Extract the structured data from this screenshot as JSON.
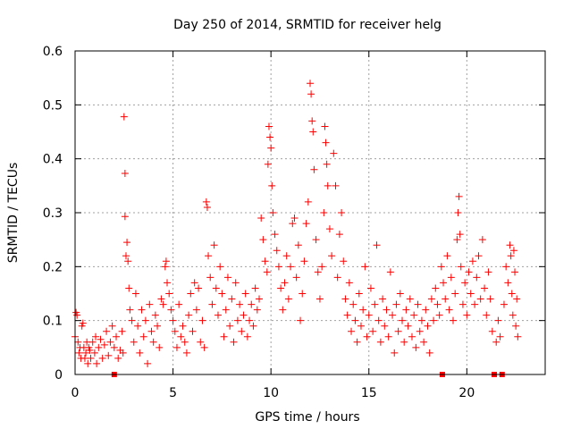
{
  "chart_data": {
    "type": "scatter",
    "title": "Day 250 of 2014, SRMTID for receiver helg",
    "xlabel": "GPS time / hours",
    "ylabel": "SRMTID / TECUs",
    "xlim": [
      0,
      24
    ],
    "ylim": [
      0,
      0.6
    ],
    "xticks": [
      0,
      5,
      10,
      15,
      20
    ],
    "xtick_labels": [
      "0",
      "5",
      "10",
      "15",
      "20"
    ],
    "yticks": [
      0,
      0.1,
      0.2,
      0.3,
      0.4,
      0.5,
      0.6
    ],
    "ytick_labels": [
      "0",
      "0.1",
      "0.2",
      "0.3",
      "0.4",
      "0.5",
      "0.6"
    ],
    "grid": true,
    "marker": "+",
    "series_color": "#ff0000",
    "series": [
      {
        "name": "SRMTID",
        "note": "representative sample of the dense point cloud",
        "points": [
          [
            0.0,
            0.07
          ],
          [
            0.05,
            0.115
          ],
          [
            0.1,
            0.11
          ],
          [
            0.15,
            0.06
          ],
          [
            0.2,
            0.04
          ],
          [
            0.25,
            0.05
          ],
          [
            0.3,
            0.03
          ],
          [
            0.35,
            0.09
          ],
          [
            0.4,
            0.095
          ],
          [
            0.45,
            0.05
          ],
          [
            0.5,
            0.03
          ],
          [
            0.55,
            0.04
          ],
          [
            0.6,
            0.06
          ],
          [
            0.65,
            0.02
          ],
          [
            0.7,
            0.05
          ],
          [
            0.75,
            0.045
          ],
          [
            0.8,
            0.03
          ],
          [
            0.9,
            0.06
          ],
          [
            1.0,
            0.04
          ],
          [
            1.05,
            0.07
          ],
          [
            1.1,
            0.02
          ],
          [
            1.2,
            0.05
          ],
          [
            1.3,
            0.065
          ],
          [
            1.4,
            0.03
          ],
          [
            1.5,
            0.055
          ],
          [
            1.6,
            0.08
          ],
          [
            1.7,
            0.035
          ],
          [
            1.8,
            0.06
          ],
          [
            1.9,
            0.09
          ],
          [
            2.0,
            0.05
          ],
          [
            2.0,
            0.0
          ],
          [
            2.1,
            0.07
          ],
          [
            2.2,
            0.03
          ],
          [
            2.3,
            0.045
          ],
          [
            2.4,
            0.08
          ],
          [
            2.45,
            0.04
          ],
          [
            2.5,
            0.478
          ],
          [
            2.55,
            0.373
          ],
          [
            2.55,
            0.293
          ],
          [
            2.6,
            0.22
          ],
          [
            2.65,
            0.245
          ],
          [
            2.7,
            0.21
          ],
          [
            2.75,
            0.16
          ],
          [
            2.8,
            0.12
          ],
          [
            2.9,
            0.1
          ],
          [
            3.0,
            0.06
          ],
          [
            3.1,
            0.15
          ],
          [
            3.2,
            0.09
          ],
          [
            3.3,
            0.04
          ],
          [
            3.4,
            0.12
          ],
          [
            3.5,
            0.07
          ],
          [
            3.6,
            0.1
          ],
          [
            3.7,
            0.02
          ],
          [
            3.8,
            0.13
          ],
          [
            3.9,
            0.08
          ],
          [
            4.0,
            0.06
          ],
          [
            4.1,
            0.11
          ],
          [
            4.2,
            0.09
          ],
          [
            4.3,
            0.05
          ],
          [
            4.4,
            0.14
          ],
          [
            4.5,
            0.13
          ],
          [
            4.6,
            0.2
          ],
          [
            4.65,
            0.21
          ],
          [
            4.7,
            0.17
          ],
          [
            4.8,
            0.15
          ],
          [
            4.9,
            0.12
          ],
          [
            5.0,
            0.1
          ],
          [
            5.1,
            0.08
          ],
          [
            5.2,
            0.05
          ],
          [
            5.3,
            0.13
          ],
          [
            5.4,
            0.07
          ],
          [
            5.5,
            0.09
          ],
          [
            5.6,
            0.06
          ],
          [
            5.7,
            0.04
          ],
          [
            5.8,
            0.11
          ],
          [
            5.9,
            0.15
          ],
          [
            6.0,
            0.08
          ],
          [
            6.1,
            0.17
          ],
          [
            6.2,
            0.12
          ],
          [
            6.3,
            0.16
          ],
          [
            6.4,
            0.06
          ],
          [
            6.5,
            0.1
          ],
          [
            6.6,
            0.05
          ],
          [
            6.7,
            0.32
          ],
          [
            6.75,
            0.31
          ],
          [
            6.8,
            0.22
          ],
          [
            6.9,
            0.18
          ],
          [
            7.0,
            0.13
          ],
          [
            7.1,
            0.24
          ],
          [
            7.2,
            0.16
          ],
          [
            7.3,
            0.11
          ],
          [
            7.4,
            0.2
          ],
          [
            7.5,
            0.15
          ],
          [
            7.6,
            0.07
          ],
          [
            7.7,
            0.12
          ],
          [
            7.8,
            0.18
          ],
          [
            7.9,
            0.09
          ],
          [
            8.0,
            0.14
          ],
          [
            8.1,
            0.06
          ],
          [
            8.2,
            0.17
          ],
          [
            8.3,
            0.1
          ],
          [
            8.4,
            0.13
          ],
          [
            8.5,
            0.08
          ],
          [
            8.6,
            0.11
          ],
          [
            8.7,
            0.15
          ],
          [
            8.8,
            0.07
          ],
          [
            8.9,
            0.1
          ],
          [
            9.0,
            0.13
          ],
          [
            9.1,
            0.09
          ],
          [
            9.2,
            0.16
          ],
          [
            9.3,
            0.12
          ],
          [
            9.4,
            0.14
          ],
          [
            9.5,
            0.29
          ],
          [
            9.6,
            0.25
          ],
          [
            9.7,
            0.21
          ],
          [
            9.8,
            0.19
          ],
          [
            9.85,
            0.39
          ],
          [
            9.9,
            0.46
          ],
          [
            9.95,
            0.44
          ],
          [
            10.0,
            0.42
          ],
          [
            10.05,
            0.35
          ],
          [
            10.1,
            0.3
          ],
          [
            10.2,
            0.26
          ],
          [
            10.3,
            0.23
          ],
          [
            10.4,
            0.2
          ],
          [
            10.5,
            0.16
          ],
          [
            10.6,
            0.12
          ],
          [
            10.7,
            0.17
          ],
          [
            10.8,
            0.22
          ],
          [
            10.9,
            0.14
          ],
          [
            11.0,
            0.2
          ],
          [
            11.1,
            0.28
          ],
          [
            11.2,
            0.29
          ],
          [
            11.3,
            0.18
          ],
          [
            11.4,
            0.24
          ],
          [
            11.5,
            0.1
          ],
          [
            11.6,
            0.15
          ],
          [
            11.7,
            0.21
          ],
          [
            11.8,
            0.28
          ],
          [
            11.9,
            0.32
          ],
          [
            12.0,
            0.54
          ],
          [
            12.05,
            0.52
          ],
          [
            12.1,
            0.47
          ],
          [
            12.15,
            0.45
          ],
          [
            12.2,
            0.38
          ],
          [
            12.3,
            0.25
          ],
          [
            12.4,
            0.19
          ],
          [
            12.5,
            0.14
          ],
          [
            12.6,
            0.2
          ],
          [
            12.7,
            0.3
          ],
          [
            12.75,
            0.46
          ],
          [
            12.8,
            0.43
          ],
          [
            12.85,
            0.39
          ],
          [
            12.9,
            0.35
          ],
          [
            13.0,
            0.27
          ],
          [
            13.1,
            0.22
          ],
          [
            13.2,
            0.41
          ],
          [
            13.3,
            0.35
          ],
          [
            13.4,
            0.18
          ],
          [
            13.5,
            0.26
          ],
          [
            13.6,
            0.3
          ],
          [
            13.7,
            0.21
          ],
          [
            13.8,
            0.14
          ],
          [
            13.9,
            0.11
          ],
          [
            14.0,
            0.17
          ],
          [
            14.1,
            0.08
          ],
          [
            14.2,
            0.13
          ],
          [
            14.3,
            0.1
          ],
          [
            14.4,
            0.06
          ],
          [
            14.5,
            0.15
          ],
          [
            14.6,
            0.09
          ],
          [
            14.7,
            0.12
          ],
          [
            14.8,
            0.2
          ],
          [
            14.9,
            0.07
          ],
          [
            15.0,
            0.11
          ],
          [
            15.1,
            0.16
          ],
          [
            15.2,
            0.08
          ],
          [
            15.3,
            0.13
          ],
          [
            15.4,
            0.24
          ],
          [
            15.5,
            0.1
          ],
          [
            15.6,
            0.06
          ],
          [
            15.7,
            0.14
          ],
          [
            15.8,
            0.09
          ],
          [
            15.9,
            0.12
          ],
          [
            16.0,
            0.07
          ],
          [
            16.1,
            0.19
          ],
          [
            16.2,
            0.11
          ],
          [
            16.3,
            0.04
          ],
          [
            16.4,
            0.13
          ],
          [
            16.5,
            0.08
          ],
          [
            16.6,
            0.15
          ],
          [
            16.7,
            0.1
          ],
          [
            16.8,
            0.06
          ],
          [
            16.9,
            0.12
          ],
          [
            17.0,
            0.09
          ],
          [
            17.1,
            0.14
          ],
          [
            17.2,
            0.07
          ],
          [
            17.3,
            0.11
          ],
          [
            17.4,
            0.05
          ],
          [
            17.5,
            0.13
          ],
          [
            17.6,
            0.08
          ],
          [
            17.7,
            0.1
          ],
          [
            17.8,
            0.06
          ],
          [
            17.9,
            0.12
          ],
          [
            18.0,
            0.09
          ],
          [
            18.1,
            0.04
          ],
          [
            18.2,
            0.14
          ],
          [
            18.3,
            0.1
          ],
          [
            18.4,
            0.16
          ],
          [
            18.5,
            0.13
          ],
          [
            18.6,
            0.11
          ],
          [
            18.7,
            0.2
          ],
          [
            18.75,
            0.0
          ],
          [
            18.8,
            0.17
          ],
          [
            18.9,
            0.14
          ],
          [
            19.0,
            0.22
          ],
          [
            19.1,
            0.12
          ],
          [
            19.2,
            0.18
          ],
          [
            19.3,
            0.1
          ],
          [
            19.4,
            0.15
          ],
          [
            19.5,
            0.25
          ],
          [
            19.55,
            0.3
          ],
          [
            19.6,
            0.33
          ],
          [
            19.65,
            0.26
          ],
          [
            19.7,
            0.2
          ],
          [
            19.8,
            0.13
          ],
          [
            19.9,
            0.17
          ],
          [
            20.0,
            0.11
          ],
          [
            20.1,
            0.19
          ],
          [
            20.2,
            0.15
          ],
          [
            20.3,
            0.21
          ],
          [
            20.4,
            0.13
          ],
          [
            20.5,
            0.18
          ],
          [
            20.6,
            0.22
          ],
          [
            20.7,
            0.14
          ],
          [
            20.8,
            0.25
          ],
          [
            20.9,
            0.16
          ],
          [
            21.0,
            0.11
          ],
          [
            21.1,
            0.19
          ],
          [
            21.2,
            0.14
          ],
          [
            21.3,
            0.08
          ],
          [
            21.4,
            0.0
          ],
          [
            21.5,
            0.06
          ],
          [
            21.6,
            0.1
          ],
          [
            21.7,
            0.07
          ],
          [
            21.8,
            0.0
          ],
          [
            21.9,
            0.13
          ],
          [
            22.0,
            0.2
          ],
          [
            22.1,
            0.17
          ],
          [
            22.2,
            0.24
          ],
          [
            22.25,
            0.22
          ],
          [
            22.3,
            0.15
          ],
          [
            22.35,
            0.11
          ],
          [
            22.4,
            0.23
          ],
          [
            22.45,
            0.19
          ],
          [
            22.5,
            0.09
          ],
          [
            22.55,
            0.14
          ],
          [
            22.6,
            0.07
          ]
        ]
      }
    ]
  }
}
